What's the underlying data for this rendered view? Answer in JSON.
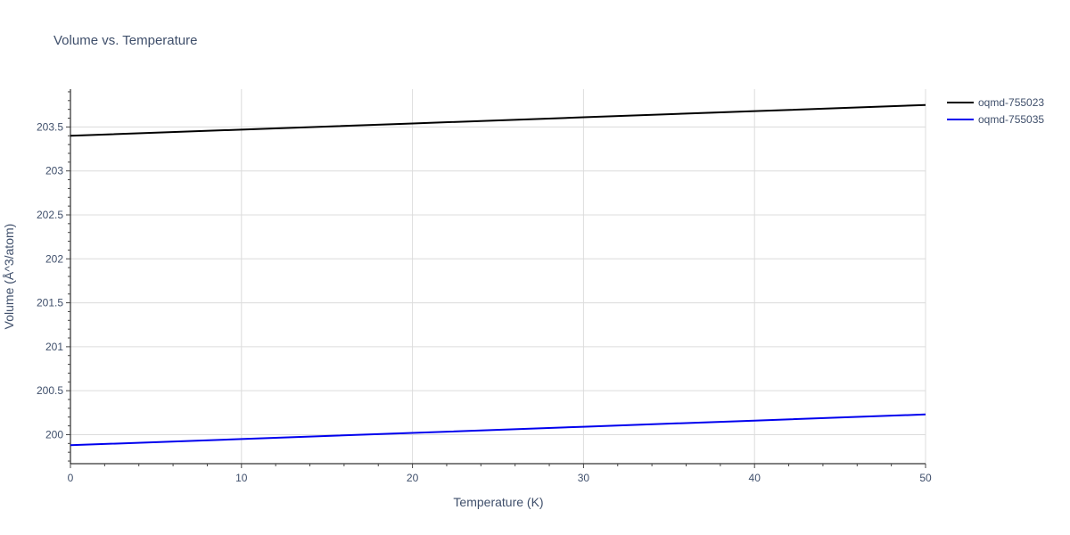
{
  "chart_data": {
    "type": "line",
    "title": "Volume vs. Temperature",
    "xlabel": "Temperature (K)",
    "ylabel": "Volume (Å^3/atom)",
    "xlim": [
      0,
      50
    ],
    "ylim": [
      199.67,
      203.93
    ],
    "x_ticks": [
      0,
      10,
      20,
      30,
      40,
      50
    ],
    "x_tick_labels": [
      "0",
      "10",
      "20",
      "30",
      "40",
      "50"
    ],
    "y_ticks": [
      200,
      200.5,
      201,
      201.5,
      202,
      202.5,
      203,
      203.5
    ],
    "y_tick_labels": [
      "200",
      "200.5",
      "201",
      "201.5",
      "202",
      "202.5",
      "203",
      "203.5"
    ],
    "grid": true,
    "legend_position": "top-right, outside plot",
    "series": [
      {
        "name": "oqmd-755023",
        "color": "#000000",
        "x": [
          0,
          10,
          20,
          30,
          40,
          50
        ],
        "y": [
          203.4,
          203.47,
          203.54,
          203.61,
          203.68,
          203.75
        ]
      },
      {
        "name": "oqmd-755035",
        "color": "#0000ee",
        "x": [
          0,
          10,
          20,
          30,
          40,
          50
        ],
        "y": [
          199.88,
          199.95,
          200.02,
          200.09,
          200.16,
          200.23
        ]
      }
    ]
  }
}
